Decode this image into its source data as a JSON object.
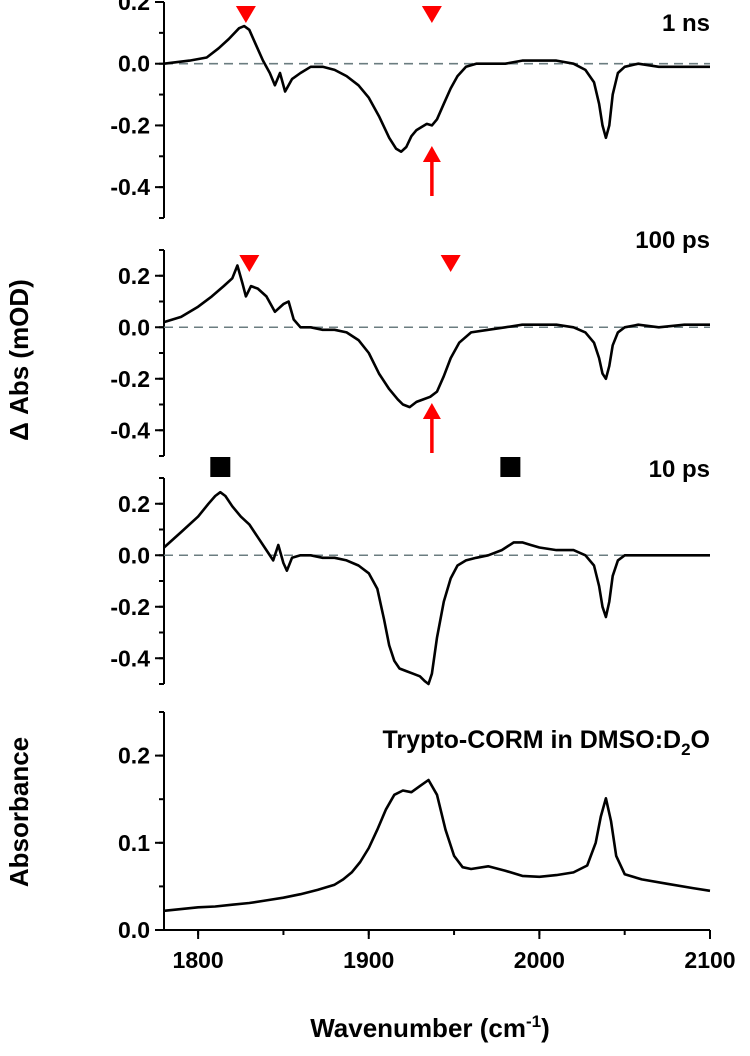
{
  "chart_data": [
    {
      "type": "line",
      "panel": "1 ns",
      "title": "1 ns",
      "ylim": [
        -0.5,
        0.2
      ],
      "yticks": [
        0.2,
        0.0,
        -0.2,
        -0.4
      ],
      "ytick_labels": [
        "0.2",
        "0.0",
        "-0.2",
        "-0.4"
      ],
      "xlim": [
        1780,
        2100
      ],
      "zero_line": true,
      "series": [
        {
          "x": [
            1780,
            1795,
            1805,
            1812,
            1818,
            1824,
            1827,
            1830,
            1834,
            1838,
            1842,
            1845,
            1848,
            1851,
            1855,
            1860,
            1866,
            1873,
            1880,
            1887,
            1894,
            1900,
            1906,
            1912,
            1916,
            1919,
            1922,
            1925,
            1928,
            1931,
            1934,
            1937,
            1940,
            1944,
            1948,
            1952,
            1957,
            1963,
            1970,
            1980,
            1990,
            2000,
            2010,
            2020,
            2027,
            2032,
            2035,
            2037,
            2039,
            2041,
            2043,
            2046,
            2050,
            2058,
            2070,
            2085,
            2100
          ],
          "y": [
            0.0,
            0.01,
            0.02,
            0.05,
            0.08,
            0.115,
            0.122,
            0.11,
            0.06,
            0.01,
            -0.03,
            -0.07,
            -0.03,
            -0.09,
            -0.05,
            -0.03,
            -0.01,
            -0.01,
            -0.02,
            -0.04,
            -0.07,
            -0.11,
            -0.17,
            -0.24,
            -0.275,
            -0.285,
            -0.27,
            -0.235,
            -0.215,
            -0.205,
            -0.195,
            -0.2,
            -0.18,
            -0.13,
            -0.08,
            -0.04,
            -0.01,
            0.0,
            0.0,
            0.0,
            0.01,
            0.01,
            0.01,
            0.0,
            -0.02,
            -0.06,
            -0.13,
            -0.2,
            -0.24,
            -0.2,
            -0.1,
            -0.03,
            -0.01,
            0.0,
            -0.01,
            -0.01,
            -0.01
          ]
        }
      ],
      "markers": [
        {
          "shape": "red-triangle-down",
          "x": 1828,
          "color": "#ff0000"
        },
        {
          "shape": "red-triangle-down",
          "x": 1937,
          "color": "#ff0000"
        }
      ],
      "arrows": [
        {
          "shape": "red-arrow-up",
          "x": 1937,
          "color": "#ff0000"
        }
      ]
    },
    {
      "type": "line",
      "panel": "100 ps",
      "title": "100 ps",
      "ylim": [
        -0.5,
        0.3
      ],
      "yticks": [
        0.2,
        0.0,
        -0.2,
        -0.4
      ],
      "ytick_labels": [
        "0.2",
        "0.0",
        "-0.2",
        "-0.4"
      ],
      "xlim": [
        1780,
        2100
      ],
      "zero_line": true,
      "series": [
        {
          "x": [
            1780,
            1790,
            1800,
            1808,
            1815,
            1820,
            1823,
            1826,
            1828,
            1831,
            1835,
            1840,
            1845,
            1850,
            1853,
            1856,
            1860,
            1866,
            1873,
            1880,
            1887,
            1894,
            1900,
            1906,
            1912,
            1917,
            1920,
            1924,
            1928,
            1932,
            1936,
            1940,
            1944,
            1948,
            1953,
            1960,
            1970,
            1980,
            1990,
            2000,
            2010,
            2020,
            2027,
            2032,
            2035,
            2037,
            2039,
            2041,
            2043,
            2046,
            2050,
            2058,
            2070,
            2085,
            2100
          ],
          "y": [
            0.02,
            0.04,
            0.08,
            0.12,
            0.16,
            0.19,
            0.24,
            0.17,
            0.12,
            0.16,
            0.15,
            0.12,
            0.06,
            0.09,
            0.1,
            0.03,
            0.0,
            0.0,
            -0.01,
            -0.01,
            -0.02,
            -0.05,
            -0.1,
            -0.18,
            -0.24,
            -0.28,
            -0.3,
            -0.31,
            -0.29,
            -0.28,
            -0.27,
            -0.25,
            -0.19,
            -0.12,
            -0.06,
            -0.02,
            -0.01,
            0.0,
            0.01,
            0.01,
            0.01,
            0.0,
            -0.02,
            -0.06,
            -0.12,
            -0.18,
            -0.2,
            -0.15,
            -0.07,
            -0.02,
            0.0,
            0.01,
            0.0,
            0.01,
            0.01
          ]
        }
      ],
      "markers": [
        {
          "shape": "red-triangle-down",
          "x": 1830,
          "color": "#ff0000"
        },
        {
          "shape": "red-triangle-down",
          "x": 1948,
          "color": "#ff0000"
        }
      ],
      "arrows": [
        {
          "shape": "red-arrow-up",
          "x": 1937,
          "color": "#ff0000"
        }
      ]
    },
    {
      "type": "line",
      "panel": "10 ps",
      "title": "10 ps",
      "ylim": [
        -0.5,
        0.3
      ],
      "yticks": [
        0.2,
        0.0,
        -0.2,
        -0.4
      ],
      "ytick_labels": [
        "0.2",
        "0.0",
        "-0.2",
        "-0.4"
      ],
      "xlim": [
        1780,
        2100
      ],
      "zero_line": true,
      "series": [
        {
          "x": [
            1780,
            1790,
            1800,
            1806,
            1810,
            1813,
            1816,
            1820,
            1825,
            1830,
            1835,
            1840,
            1844,
            1847,
            1850,
            1852,
            1855,
            1860,
            1866,
            1873,
            1880,
            1887,
            1894,
            1900,
            1905,
            1909,
            1912,
            1915,
            1918,
            1922,
            1926,
            1930,
            1933,
            1935,
            1937,
            1940,
            1944,
            1948,
            1952,
            1957,
            1963,
            1970,
            1978,
            1985,
            1990,
            1995,
            2000,
            2010,
            2020,
            2027,
            2032,
            2035,
            2037,
            2039,
            2041,
            2043,
            2046,
            2050,
            2058,
            2070,
            2085,
            2100
          ],
          "y": [
            0.03,
            0.09,
            0.15,
            0.2,
            0.23,
            0.245,
            0.23,
            0.19,
            0.15,
            0.12,
            0.07,
            0.02,
            -0.02,
            0.04,
            -0.03,
            -0.06,
            -0.01,
            0.0,
            0.0,
            -0.01,
            -0.01,
            -0.02,
            -0.04,
            -0.07,
            -0.13,
            -0.25,
            -0.35,
            -0.41,
            -0.44,
            -0.45,
            -0.46,
            -0.47,
            -0.49,
            -0.5,
            -0.46,
            -0.32,
            -0.18,
            -0.09,
            -0.04,
            -0.02,
            -0.01,
            0.0,
            0.02,
            0.05,
            0.05,
            0.04,
            0.03,
            0.02,
            0.02,
            0.0,
            -0.04,
            -0.12,
            -0.2,
            -0.24,
            -0.18,
            -0.08,
            -0.02,
            0.0,
            0.0,
            0.0,
            0.0,
            0.0
          ]
        }
      ],
      "markers": [
        {
          "shape": "black-square",
          "x": 1813,
          "color": "#000000"
        },
        {
          "shape": "black-square",
          "x": 1983,
          "color": "#000000"
        }
      ]
    },
    {
      "type": "line",
      "panel": "Absorbance",
      "title_main": "Trypto-CORM in DMSO:D",
      "title_sub": "2",
      "title_tail": "O",
      "ylabel": "Absorbance",
      "ylim": [
        0.0,
        0.25
      ],
      "yticks": [
        0.2,
        0.1,
        0.0
      ],
      "ytick_labels": [
        "0.2",
        "0.1",
        "0.0"
      ],
      "xlim": [
        1780,
        2100
      ],
      "xticks": [
        1800,
        1900,
        2000,
        2100
      ],
      "xtick_labels": [
        "1800",
        "1900",
        "2000",
        "2100"
      ],
      "series": [
        {
          "x": [
            1780,
            1790,
            1800,
            1810,
            1820,
            1830,
            1840,
            1850,
            1860,
            1870,
            1880,
            1885,
            1890,
            1895,
            1900,
            1905,
            1910,
            1915,
            1920,
            1925,
            1930,
            1935,
            1940,
            1945,
            1950,
            1955,
            1960,
            1970,
            1980,
            1990,
            2000,
            2010,
            2020,
            2028,
            2033,
            2036,
            2039,
            2042,
            2045,
            2050,
            2060,
            2075,
            2090,
            2100
          ],
          "y": [
            0.022,
            0.024,
            0.026,
            0.027,
            0.029,
            0.031,
            0.034,
            0.037,
            0.041,
            0.046,
            0.052,
            0.058,
            0.066,
            0.078,
            0.094,
            0.115,
            0.138,
            0.155,
            0.16,
            0.158,
            0.165,
            0.172,
            0.155,
            0.115,
            0.085,
            0.072,
            0.07,
            0.073,
            0.068,
            0.062,
            0.061,
            0.063,
            0.066,
            0.074,
            0.1,
            0.13,
            0.151,
            0.125,
            0.085,
            0.064,
            0.058,
            0.053,
            0.048,
            0.045
          ]
        }
      ]
    }
  ],
  "axes": {
    "ylabel_top": "Δ Abs (mOD)",
    "ylabel_bottom": "Absorbance",
    "xlabel_main": "Wavenumber (cm",
    "xlabel_sup": "-1",
    "xlabel_tail": ")"
  }
}
